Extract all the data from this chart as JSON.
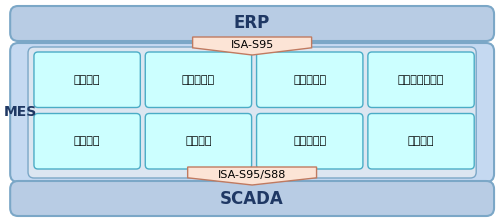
{
  "fig_width": 5.0,
  "fig_height": 2.22,
  "dpi": 100,
  "bg_color": "#ffffff",
  "erp_bg": "#b8cce4",
  "erp_text": "ERP",
  "erp_text_color": "#1f3864",
  "erp_text_bold": true,
  "mes_bg": "#b8cce4",
  "mes_text": "MES",
  "mes_text_color": "#1f3864",
  "scada_bg": "#b8cce4",
  "scada_text": "SCADA",
  "scada_text_color": "#1f3864",
  "scada_text_bold": true,
  "mes_inner_bg": "#dce6f1",
  "isa95_box_color": "#fce4d6",
  "isa95_text": "ISA-S95",
  "isa95s88_text": "ISA-S95/S88",
  "module_bg": "#ccffff",
  "module_border": "#4bacc6",
  "modules_row1": [
    "物料管理",
    "称重和配送",
    "电子批记录",
    "批次复核及执行"
  ],
  "modules_row2": [
    "排产排程",
    "设备管理",
    "生产批报表",
    "质量追溯"
  ],
  "module_text_color": "#000000"
}
